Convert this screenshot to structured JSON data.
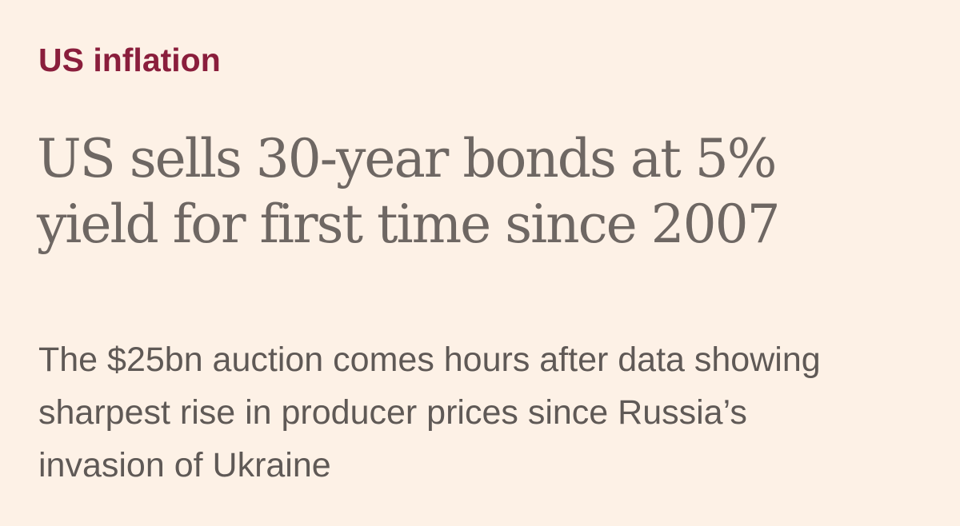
{
  "article": {
    "topic": "US inflation",
    "headline_lines": [
      "US sells 30-year bonds at 5%",
      "yield for first time since 2007"
    ],
    "standfirst_lines": [
      "The $25bn auction comes hours after data showing",
      "sharpest rise in producer prices since Russia’s",
      "invasion of Ukraine"
    ]
  },
  "colors": {
    "background": "#fdf1e6",
    "topic": "#8a1e3c",
    "headline": "#6e6763",
    "standfirst": "#5f5956"
  }
}
